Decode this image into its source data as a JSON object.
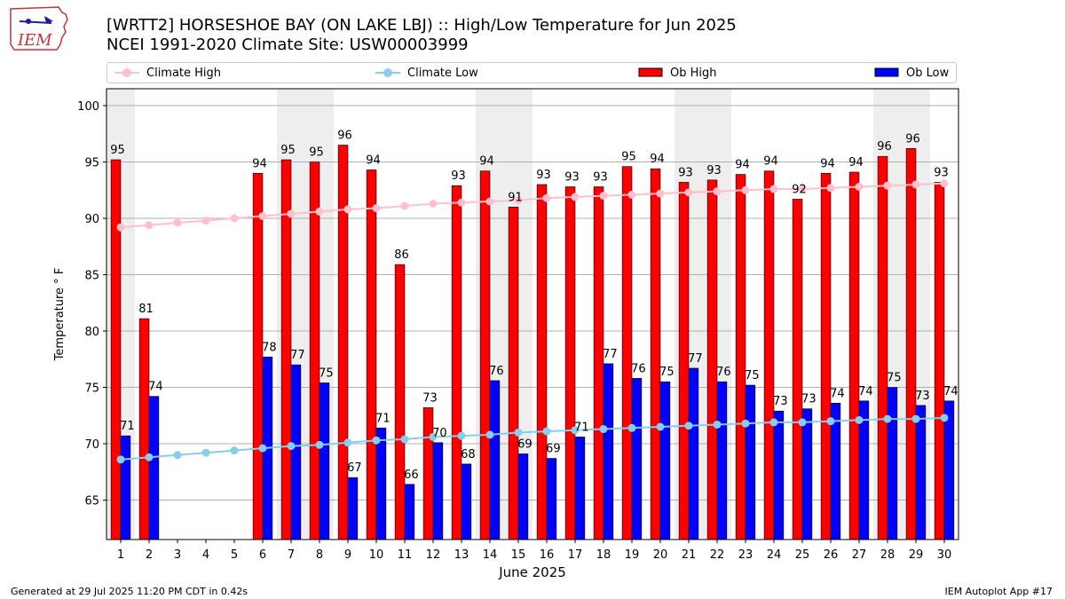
{
  "header": {
    "title": "[WRTT2] HORSESHOE BAY (ON LAKE LBJ) :: High/Low Temperature for Jun 2025",
    "subtitle": "NCEI 1991-2020 Climate Site: USW00003999",
    "logo_text": "IEM"
  },
  "footer": {
    "generated": "Generated at 29 Jul 2025 11:20 PM CDT in 0.42s",
    "app": "IEM Autoplot App #17"
  },
  "colors": {
    "ob_high": "#ff0000",
    "ob_low": "#0000ff",
    "climate_high": "#ffc0cb",
    "climate_low": "#87ceeb",
    "weekend_shade": "#eeeeee",
    "grid": "#b0b0b0"
  },
  "chart_data": {
    "type": "bar",
    "xlabel": "June 2025",
    "ylabel": "Temperature ° F",
    "ylim": [
      61.5,
      101.5
    ],
    "yticks": [
      65,
      70,
      75,
      80,
      85,
      90,
      95,
      100
    ],
    "grid": "horizontal",
    "legend_placement": "top",
    "categories": [
      "1",
      "2",
      "3",
      "4",
      "5",
      "6",
      "7",
      "8",
      "9",
      "10",
      "11",
      "12",
      "13",
      "14",
      "15",
      "16",
      "17",
      "18",
      "19",
      "20",
      "21",
      "22",
      "23",
      "24",
      "25",
      "26",
      "27",
      "28",
      "29",
      "30"
    ],
    "weekend_days": [
      1,
      7,
      8,
      14,
      15,
      21,
      22,
      28,
      29
    ],
    "series": [
      {
        "name": "Ob High",
        "kind": "bar",
        "values": [
          95.2,
          81.1,
          null,
          null,
          null,
          94.0,
          95.2,
          95.0,
          96.5,
          94.3,
          85.9,
          73.2,
          92.9,
          94.2,
          91.0,
          93.0,
          92.8,
          92.8,
          94.6,
          94.4,
          93.2,
          93.4,
          93.9,
          94.2,
          91.7,
          94.0,
          94.1,
          95.5,
          96.2,
          93.2
        ],
        "labels": [
          "95",
          "81",
          "",
          "",
          "",
          "94",
          "95",
          "95",
          "96",
          "94",
          "86",
          "73",
          "93",
          "94",
          "91",
          "93",
          "93",
          "93",
          "95",
          "94",
          "93",
          "93",
          "94",
          "94",
          "92",
          "94",
          "94",
          "96",
          "96",
          "93"
        ]
      },
      {
        "name": "Ob Low",
        "kind": "bar",
        "values": [
          70.7,
          74.2,
          null,
          null,
          null,
          77.7,
          77.0,
          75.4,
          67.0,
          71.4,
          66.4,
          70.1,
          68.2,
          75.6,
          69.1,
          68.7,
          70.6,
          77.1,
          75.8,
          75.5,
          76.7,
          75.5,
          75.2,
          72.9,
          73.1,
          73.6,
          73.8,
          75.0,
          73.4,
          73.8
        ],
        "labels": [
          "71",
          "74",
          "",
          "",
          "",
          "78",
          "77",
          "75",
          "67",
          "71",
          "66",
          "70",
          "68",
          "76",
          "69",
          "69",
          "71",
          "77",
          "76",
          "75",
          "77",
          "76",
          "75",
          "73",
          "73",
          "74",
          "74",
          "75",
          "73",
          "74"
        ]
      },
      {
        "name": "Climate High",
        "kind": "line",
        "values": [
          89.2,
          89.4,
          89.6,
          89.8,
          90.0,
          90.2,
          90.4,
          90.6,
          90.8,
          90.9,
          91.1,
          91.3,
          91.4,
          91.5,
          91.6,
          91.8,
          91.9,
          92.0,
          92.1,
          92.2,
          92.3,
          92.4,
          92.5,
          92.6,
          92.6,
          92.7,
          92.8,
          92.9,
          93.0,
          93.1
        ]
      },
      {
        "name": "Climate Low",
        "kind": "line",
        "values": [
          68.6,
          68.8,
          69.0,
          69.2,
          69.4,
          69.6,
          69.8,
          69.9,
          70.1,
          70.3,
          70.4,
          70.6,
          70.7,
          70.8,
          71.0,
          71.1,
          71.2,
          71.3,
          71.4,
          71.5,
          71.6,
          71.7,
          71.8,
          71.9,
          71.9,
          72.0,
          72.1,
          72.2,
          72.2,
          72.3
        ]
      }
    ]
  }
}
